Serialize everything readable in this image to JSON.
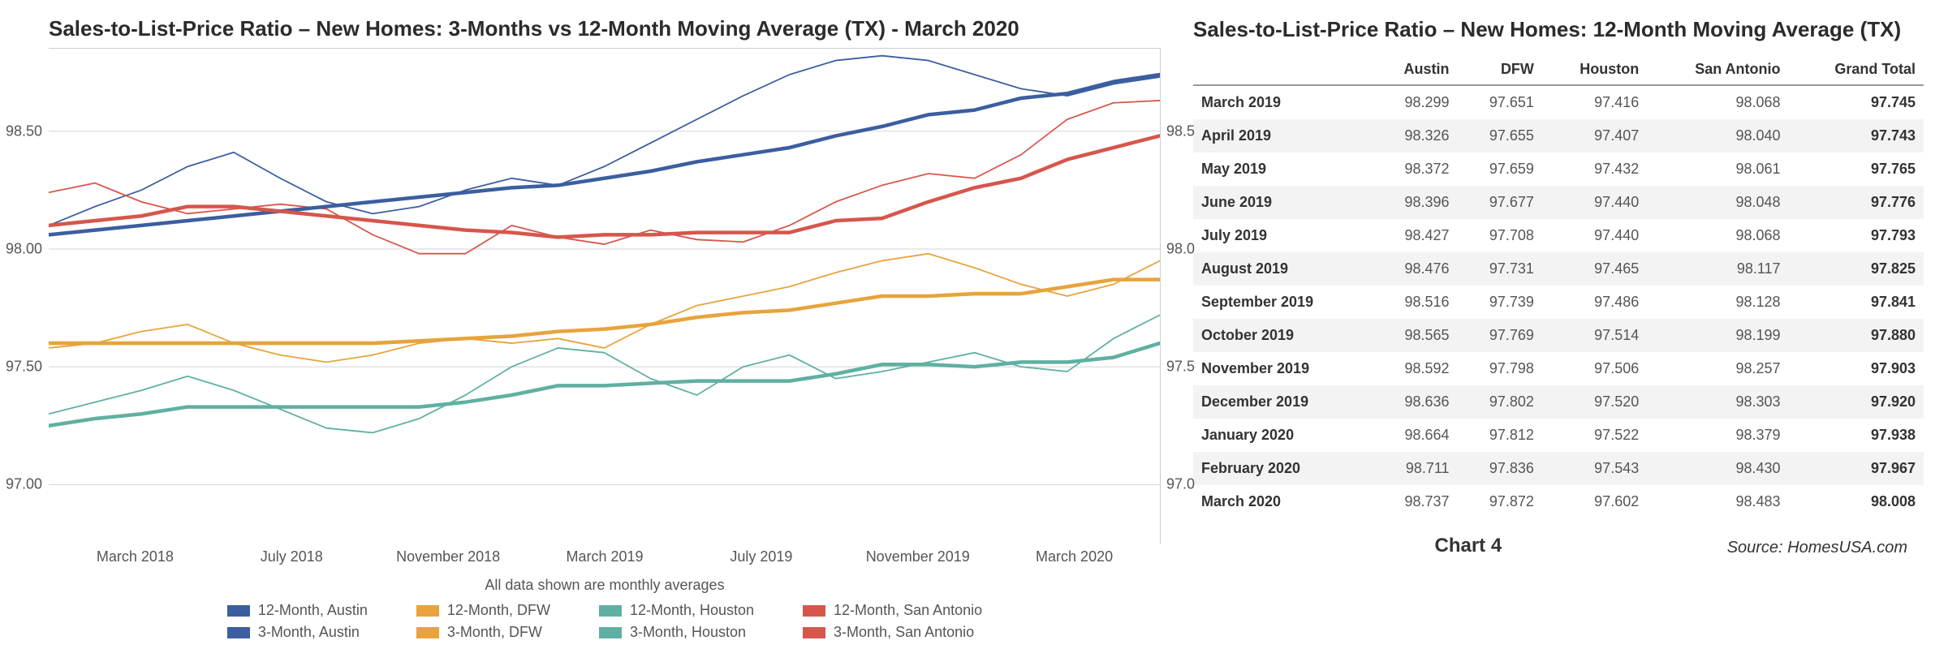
{
  "chart": {
    "title": "Sales-to-List-Price Ratio – New Homes: 3-Months vs 12-Month Moving Average (TX) - March 2020",
    "subnote": "All data shown are monthly averages",
    "y_left_ticks": [
      {
        "v": 98.5,
        "label": "98.50"
      },
      {
        "v": 98.0,
        "label": "98.00"
      },
      {
        "v": 97.5,
        "label": "97.50"
      },
      {
        "v": 97.0,
        "label": "97.00"
      }
    ],
    "y_right_ticks": [
      {
        "v": 98.5,
        "label": "98.5"
      },
      {
        "v": 98.0,
        "label": "98.0"
      },
      {
        "v": 97.5,
        "label": "97.5"
      },
      {
        "v": 97.0,
        "label": "97.0"
      }
    ],
    "x_labels": [
      "March 2018",
      "July 2018",
      "November 2018",
      "March 2019",
      "July 2019",
      "November 2019",
      "March 2020"
    ],
    "y_min": 96.75,
    "y_max": 98.85,
    "grid_color": "#d9d9d9",
    "colors": {
      "austin": "#3b5ea0",
      "dfw": "#e8a33d",
      "houston": "#5fb0a2",
      "san_antonio": "#d6564c"
    },
    "thick": 4,
    "thin": 1.6,
    "series": {
      "austin_12": [
        98.06,
        98.08,
        98.1,
        98.12,
        98.14,
        98.16,
        98.18,
        98.2,
        98.22,
        98.24,
        98.26,
        98.27,
        98.3,
        98.33,
        98.37,
        98.4,
        98.43,
        98.48,
        98.52,
        98.57,
        98.59,
        98.64,
        98.66,
        98.71,
        98.74
      ],
      "austin_3": [
        98.1,
        98.18,
        98.25,
        98.35,
        98.41,
        98.3,
        98.2,
        98.15,
        98.18,
        98.25,
        98.3,
        98.27,
        98.35,
        98.45,
        98.55,
        98.65,
        98.74,
        98.8,
        98.82,
        98.8,
        98.74,
        98.68,
        98.65,
        98.7,
        98.73
      ],
      "dfw_12": [
        97.6,
        97.6,
        97.6,
        97.6,
        97.6,
        97.6,
        97.6,
        97.6,
        97.61,
        97.62,
        97.63,
        97.65,
        97.66,
        97.68,
        97.71,
        97.73,
        97.74,
        97.77,
        97.8,
        97.8,
        97.81,
        97.81,
        97.84,
        97.87,
        97.87
      ],
      "dfw_3": [
        97.58,
        97.6,
        97.65,
        97.68,
        97.6,
        97.55,
        97.52,
        97.55,
        97.6,
        97.62,
        97.6,
        97.62,
        97.58,
        97.68,
        97.76,
        97.8,
        97.84,
        97.9,
        97.95,
        97.98,
        97.92,
        97.85,
        97.8,
        97.85,
        97.95
      ],
      "houston_12": [
        97.25,
        97.28,
        97.3,
        97.33,
        97.33,
        97.33,
        97.33,
        97.33,
        97.33,
        97.35,
        97.38,
        97.42,
        97.42,
        97.43,
        97.44,
        97.44,
        97.44,
        97.47,
        97.51,
        97.51,
        97.5,
        97.52,
        97.52,
        97.54,
        97.6
      ],
      "houston_3": [
        97.3,
        97.35,
        97.4,
        97.46,
        97.4,
        97.32,
        97.24,
        97.22,
        97.28,
        97.38,
        97.5,
        97.58,
        97.56,
        97.45,
        97.38,
        97.5,
        97.55,
        97.45,
        97.48,
        97.52,
        97.56,
        97.5,
        97.48,
        97.62,
        97.72
      ],
      "san_antonio_12": [
        98.1,
        98.12,
        98.14,
        98.18,
        98.18,
        98.16,
        98.14,
        98.12,
        98.1,
        98.08,
        98.07,
        98.05,
        98.06,
        98.06,
        98.07,
        98.07,
        98.07,
        98.12,
        98.13,
        98.2,
        98.26,
        98.3,
        98.38,
        98.43,
        98.48
      ],
      "san_antonio_3": [
        98.24,
        98.28,
        98.2,
        98.15,
        98.17,
        98.19,
        98.17,
        98.06,
        97.98,
        97.98,
        98.1,
        98.05,
        98.02,
        98.08,
        98.04,
        98.03,
        98.1,
        98.2,
        98.27,
        98.32,
        98.3,
        98.4,
        98.55,
        98.62,
        98.63
      ]
    },
    "legend": [
      {
        "label": "12-Month, Austin",
        "color": "austin"
      },
      {
        "label": "12-Month, DFW",
        "color": "dfw"
      },
      {
        "label": "12-Month, Houston",
        "color": "houston"
      },
      {
        "label": "12-Month, San Antonio",
        "color": "san_antonio"
      },
      {
        "label": "3-Month, Austin",
        "color": "austin"
      },
      {
        "label": "3-Month, DFW",
        "color": "dfw"
      },
      {
        "label": "3-Month, Houston",
        "color": "houston"
      },
      {
        "label": "3-Month, San Antonio",
        "color": "san_antonio"
      }
    ]
  },
  "table": {
    "title": "Sales-to-List-Price Ratio – New Homes:  12-Month Moving Average (TX)",
    "columns": [
      "",
      "Austin",
      "DFW",
      "Houston",
      "San Antonio",
      "Grand Total"
    ],
    "rows": [
      [
        "March 2019",
        "98.299",
        "97.651",
        "97.416",
        "98.068",
        "97.745"
      ],
      [
        "April 2019",
        "98.326",
        "97.655",
        "97.407",
        "98.040",
        "97.743"
      ],
      [
        "May 2019",
        "98.372",
        "97.659",
        "97.432",
        "98.061",
        "97.765"
      ],
      [
        "June 2019",
        "98.396",
        "97.677",
        "97.440",
        "98.048",
        "97.776"
      ],
      [
        "July 2019",
        "98.427",
        "97.708",
        "97.440",
        "98.068",
        "97.793"
      ],
      [
        "August 2019",
        "98.476",
        "97.731",
        "97.465",
        "98.117",
        "97.825"
      ],
      [
        "September 2019",
        "98.516",
        "97.739",
        "97.486",
        "98.128",
        "97.841"
      ],
      [
        "October 2019",
        "98.565",
        "97.769",
        "97.514",
        "98.199",
        "97.880"
      ],
      [
        "November 2019",
        "98.592",
        "97.798",
        "97.506",
        "98.257",
        "97.903"
      ],
      [
        "December 2019",
        "98.636",
        "97.802",
        "97.520",
        "98.303",
        "97.920"
      ],
      [
        "January 2020",
        "98.664",
        "97.812",
        "97.522",
        "98.379",
        "97.938"
      ],
      [
        "February 2020",
        "98.711",
        "97.836",
        "97.543",
        "98.430",
        "97.967"
      ],
      [
        "March 2020",
        "98.737",
        "97.872",
        "97.602",
        "98.483",
        "98.008"
      ]
    ]
  },
  "footer": {
    "chart_label": "Chart 4",
    "source": "Source: HomesUSA.com"
  }
}
